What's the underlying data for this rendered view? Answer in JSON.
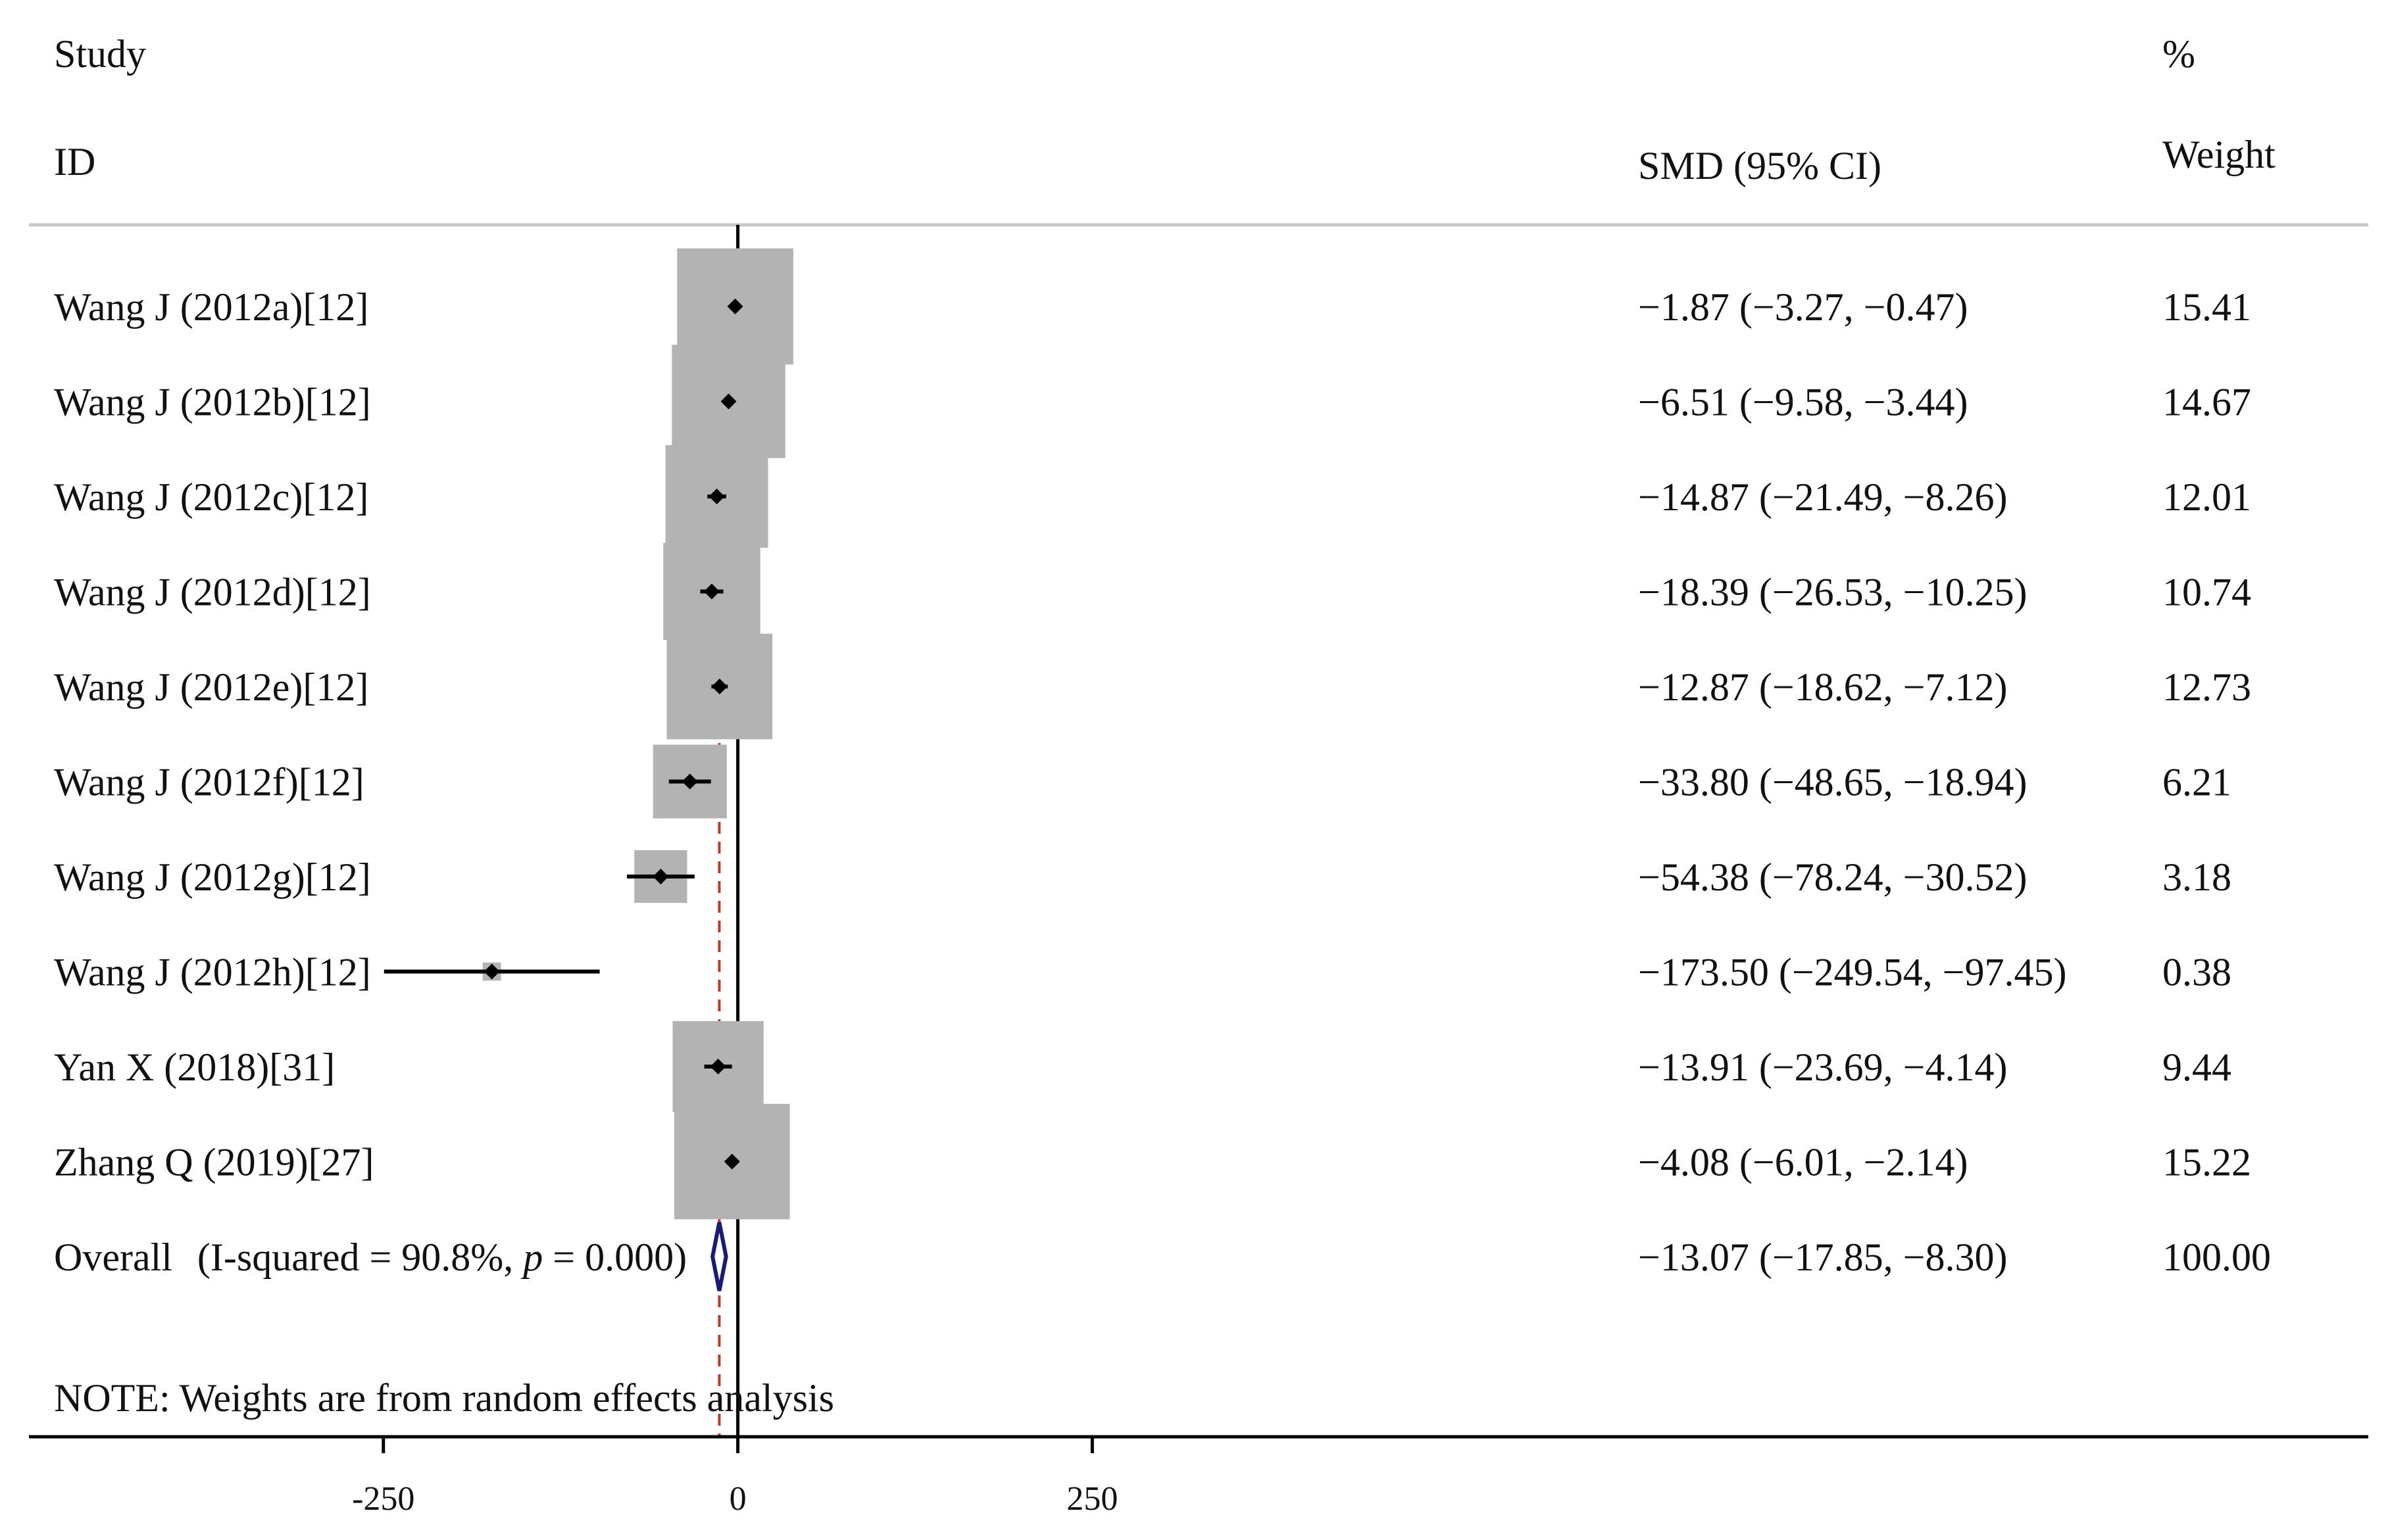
{
  "headers": {
    "study_line1": "Study",
    "study_line2": "ID",
    "effect": "SMD (95% CI)",
    "weight_line1": "%",
    "weight_line2": "Weight"
  },
  "note": "NOTE: Weights are from random effects analysis",
  "colors": {
    "box": "#b3b3b3",
    "point": "#000000",
    "ci_line": "#000000",
    "null_line": "#000000",
    "overall_line": "#c0392b",
    "diamond": "#1a1a7a",
    "rule": "#c8c8c8"
  },
  "chart_data": {
    "type": "forest",
    "measure": "SMD",
    "xlim": [
      -500,
      1150
    ],
    "x_ticks": [
      -250,
      0,
      250
    ],
    "x_tick_labels": [
      "-250",
      "0",
      "250"
    ],
    "null_value": 0,
    "studies": [
      {
        "label": "Wang J (2012a)[12]",
        "estimate": -1.87,
        "lower": -3.27,
        "upper": -0.47,
        "weight": 15.41,
        "ci_text": "−1.87 (−3.27, −0.47)",
        "weight_text": "15.41"
      },
      {
        "label": "Wang J (2012b)[12]",
        "estimate": -6.51,
        "lower": -9.58,
        "upper": -3.44,
        "weight": 14.67,
        "ci_text": "−6.51 (−9.58, −3.44)",
        "weight_text": "14.67"
      },
      {
        "label": "Wang J (2012c)[12]",
        "estimate": -14.87,
        "lower": -21.49,
        "upper": -8.26,
        "weight": 12.01,
        "ci_text": "−14.87 (−21.49, −8.26)",
        "weight_text": "12.01"
      },
      {
        "label": "Wang J (2012d)[12]",
        "estimate": -18.39,
        "lower": -26.53,
        "upper": -10.25,
        "weight": 10.74,
        "ci_text": "−18.39 (−26.53, −10.25)",
        "weight_text": "10.74"
      },
      {
        "label": "Wang J (2012e)[12]",
        "estimate": -12.87,
        "lower": -18.62,
        "upper": -7.12,
        "weight": 12.73,
        "ci_text": "−12.87 (−18.62, −7.12)",
        "weight_text": "12.73"
      },
      {
        "label": "Wang J (2012f)[12]",
        "estimate": -33.8,
        "lower": -48.65,
        "upper": -18.94,
        "weight": 6.21,
        "ci_text": "−33.80 (−48.65, −18.94)",
        "weight_text": "6.21"
      },
      {
        "label": "Wang J (2012g)[12]",
        "estimate": -54.38,
        "lower": -78.24,
        "upper": -30.52,
        "weight": 3.18,
        "ci_text": "−54.38 (−78.24, −30.52)",
        "weight_text": "3.18"
      },
      {
        "label": "Wang J (2012h)[12]",
        "estimate": -173.5,
        "lower": -249.54,
        "upper": -97.45,
        "weight": 0.38,
        "ci_text": "−173.50 (−249.54, −97.45)",
        "weight_text": "0.38"
      },
      {
        "label": "Yan X (2018)[31]",
        "estimate": -13.91,
        "lower": -23.69,
        "upper": -4.14,
        "weight": 9.44,
        "ci_text": "−13.91 (−23.69, −4.14)",
        "weight_text": "9.44"
      },
      {
        "label": "Zhang Q (2019)[27]",
        "estimate": -4.08,
        "lower": -6.01,
        "upper": -2.14,
        "weight": 15.22,
        "ci_text": "−4.08 (−6.01, −2.14)",
        "weight_text": "15.22"
      }
    ],
    "overall": {
      "label": "Overall",
      "heterogeneity_prefix": "(I-squared = 90.8%, ",
      "p_symbol": "p",
      "heterogeneity_suffix": " = 0.000)",
      "estimate": -13.07,
      "lower": -17.85,
      "upper": -8.3,
      "weight": 100.0,
      "ci_text": "−13.07 (−17.85, −8.30)",
      "weight_text": "100.00"
    }
  }
}
